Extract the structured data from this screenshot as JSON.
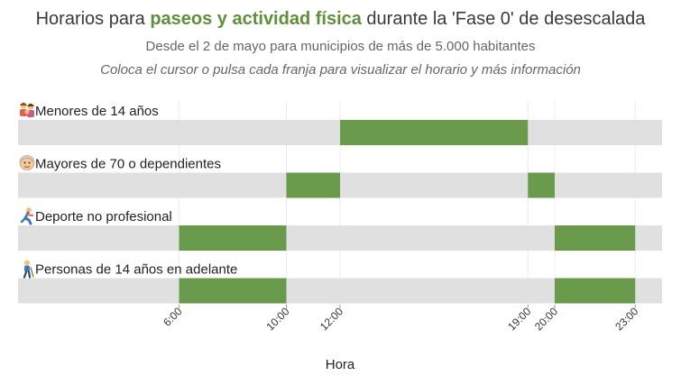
{
  "header": {
    "title_prefix": "Horarios para ",
    "title_highlight": "paseos y actividad física",
    "title_suffix": " durante la 'Fase 0' de desescalada",
    "subtitle": "Desde el 2 de mayo para municipios de más de 5.000 habitantes",
    "hint": "Coloca el cursor o pulsa cada franja para visualizar el horario y más información"
  },
  "colors": {
    "bar": "#6a9a4c",
    "track": "#e0e0e0",
    "gridline": "#ececec",
    "highlight_text": "#5f8f3a"
  },
  "chart_data": {
    "type": "bar",
    "orientation": "horizontal-range",
    "xlabel": "Hora",
    "xlim": [
      0,
      24
    ],
    "x_ticks": [
      {
        "value": 6,
        "label": "6:00"
      },
      {
        "value": 10,
        "label": "10:00"
      },
      {
        "value": 12,
        "label": "12:00"
      },
      {
        "value": 19,
        "label": "19:00"
      },
      {
        "value": 20,
        "label": "20:00"
      },
      {
        "value": 23,
        "label": "23:00"
      }
    ],
    "categories": [
      {
        "label": "Menores de 14 años",
        "icon": "family-icon",
        "ranges": [
          [
            12,
            19
          ]
        ]
      },
      {
        "label": "Mayores de 70 o dependientes",
        "icon": "older-person-icon",
        "ranges": [
          [
            10,
            12
          ],
          [
            19,
            20
          ]
        ]
      },
      {
        "label": "Deporte no profesional",
        "icon": "runner-icon",
        "ranges": [
          [
            6,
            10
          ],
          [
            20,
            23
          ]
        ]
      },
      {
        "label": "Personas de 14 años en adelante",
        "icon": "walker-icon",
        "ranges": [
          [
            6,
            10
          ],
          [
            20,
            23
          ]
        ]
      }
    ]
  }
}
